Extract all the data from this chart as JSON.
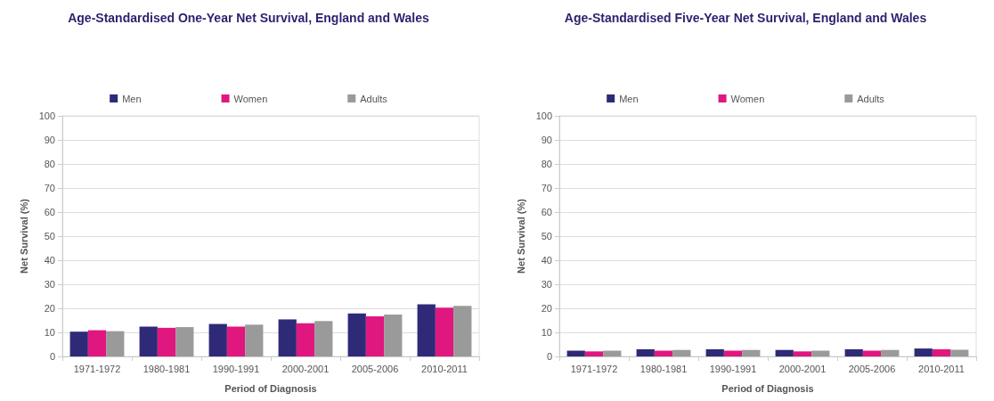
{
  "chart_data": [
    {
      "type": "bar",
      "title": "Age-Standardised One-Year Net Survival, England and Wales",
      "xlabel": "Period of Diagnosis",
      "ylabel": "Net Survival (%)",
      "categories": [
        "1971-1972",
        "1980-1981",
        "1990-1991",
        "2000-2001",
        "2005-2006",
        "2010-2011"
      ],
      "series": [
        {
          "name": "Men",
          "color": "#2e2a78",
          "values": [
            10.3,
            12.4,
            13.5,
            15.4,
            17.9,
            21.7
          ]
        },
        {
          "name": "Women",
          "color": "#e0177f",
          "values": [
            10.9,
            11.9,
            12.4,
            13.8,
            16.7,
            20.3
          ]
        },
        {
          "name": "Adults",
          "color": "#9a9a9a",
          "values": [
            10.5,
            12.2,
            13.2,
            14.7,
            17.4,
            21.0
          ]
        }
      ],
      "ylim": [
        0,
        100
      ],
      "yticks": [
        0,
        10,
        20,
        30,
        40,
        50,
        60,
        70,
        80,
        90,
        100
      ],
      "grid": "y",
      "legend": "top"
    },
    {
      "type": "bar",
      "title": "Age-Standardised Five-Year Net Survival, England and Wales",
      "xlabel": "Period of Diagnosis",
      "ylabel": "Net Survival (%)",
      "categories": [
        "1971-1972",
        "1980-1981",
        "1990-1991",
        "2000-2001",
        "2005-2006",
        "2010-2011"
      ],
      "series": [
        {
          "name": "Men",
          "color": "#2e2a78",
          "values": [
            2.4,
            3.0,
            3.0,
            2.7,
            3.0,
            3.3
          ]
        },
        {
          "name": "Women",
          "color": "#e0177f",
          "values": [
            2.1,
            2.4,
            2.4,
            2.1,
            2.4,
            3.0
          ]
        },
        {
          "name": "Adults",
          "color": "#9a9a9a",
          "values": [
            2.4,
            2.7,
            2.7,
            2.4,
            2.7,
            2.8
          ]
        }
      ],
      "ylim": [
        0,
        100
      ],
      "yticks": [
        0,
        10,
        20,
        30,
        40,
        50,
        60,
        70,
        80,
        90,
        100
      ],
      "grid": "y",
      "legend": "top"
    }
  ]
}
